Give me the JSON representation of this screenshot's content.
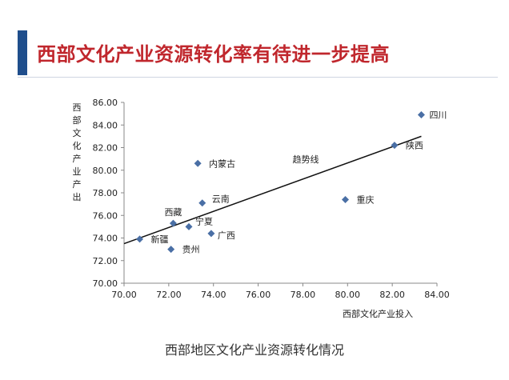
{
  "page": {
    "title": "西部文化产业资源转化率有待进一步提高",
    "caption": "西部地区文化产业资源转化情况",
    "accent_color": "#1f4e8c",
    "title_color": "#c0272d"
  },
  "chart_data": {
    "type": "scatter",
    "title": "",
    "xlabel": "西部文化产业投入",
    "ylabel": "西部文化产业产出",
    "xlim": [
      70,
      84
    ],
    "ylim": [
      70,
      86
    ],
    "x_ticks": [
      "70.00",
      "72.00",
      "74.00",
      "76.00",
      "78.00",
      "80.00",
      "82.00",
      "84.00"
    ],
    "y_ticks": [
      "70.00",
      "72.00",
      "74.00",
      "76.00",
      "78.00",
      "80.00",
      "82.00",
      "84.00",
      "86.00"
    ],
    "grid": false,
    "marker_color": "#4a6fa5",
    "points": [
      {
        "label": "四川",
        "x": 83.3,
        "y": 84.9
      },
      {
        "label": "陕西",
        "x": 82.1,
        "y": 82.2
      },
      {
        "label": "内蒙古",
        "x": 73.3,
        "y": 80.6
      },
      {
        "label": "重庆",
        "x": 79.9,
        "y": 77.4
      },
      {
        "label": "云南",
        "x": 73.5,
        "y": 77.1
      },
      {
        "label": "西藏",
        "x": 72.2,
        "y": 75.3
      },
      {
        "label": "宁夏",
        "x": 72.9,
        "y": 75.0
      },
      {
        "label": "广西",
        "x": 73.9,
        "y": 74.4
      },
      {
        "label": "新疆",
        "x": 70.7,
        "y": 73.9
      },
      {
        "label": "贵州",
        "x": 72.1,
        "y": 73.0
      }
    ],
    "trendline": {
      "label": "趋势线",
      "from": {
        "x": 70.0,
        "y": 73.5
      },
      "to": {
        "x": 83.3,
        "y": 83.0
      }
    }
  }
}
